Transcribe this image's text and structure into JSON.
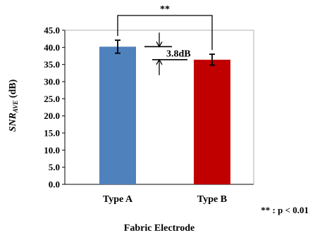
{
  "chart_data": {
    "type": "bar",
    "categories": [
      "Type A",
      "Type B"
    ],
    "values": [
      40.2,
      36.4
    ],
    "errors": [
      1.9,
      1.6
    ],
    "colors": [
      "#4f81bd",
      "#c00000"
    ],
    "xlabel": "Fabric Electrode",
    "ylabel": {
      "main": "SNR",
      "sub": "AVE",
      "unit": " (dB)"
    },
    "ylim": [
      0,
      45
    ],
    "yticks": [
      "0.0",
      "5.0",
      "10.0",
      "15.0",
      "20.0",
      "25.0",
      "30.0",
      "35.0",
      "40.0",
      "45.0"
    ],
    "grid": false,
    "annotations": {
      "difference": "3.8dB",
      "significance": "**",
      "note": "** : p < 0.01"
    }
  }
}
